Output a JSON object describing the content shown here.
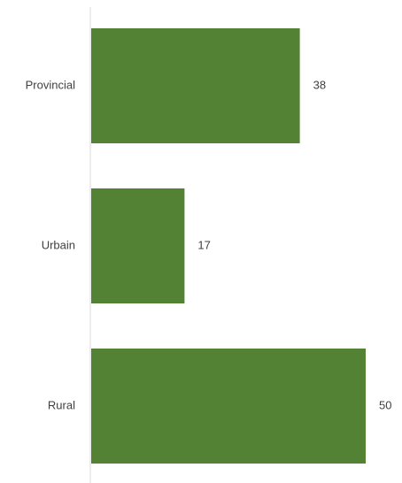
{
  "chart_data": {
    "type": "bar",
    "orientation": "horizontal",
    "categories": [
      "Provincial",
      "Urbain",
      "Rural"
    ],
    "values": [
      38,
      17,
      50
    ],
    "value_labels": [
      "38",
      "17",
      "50"
    ],
    "title": "",
    "xlabel": "",
    "ylabel": "",
    "xlim": [
      0,
      55
    ],
    "grid": false,
    "legend": "none",
    "colors": {
      "bar": "#548235",
      "axis": "#d9d9d9",
      "text": "#404040"
    }
  }
}
